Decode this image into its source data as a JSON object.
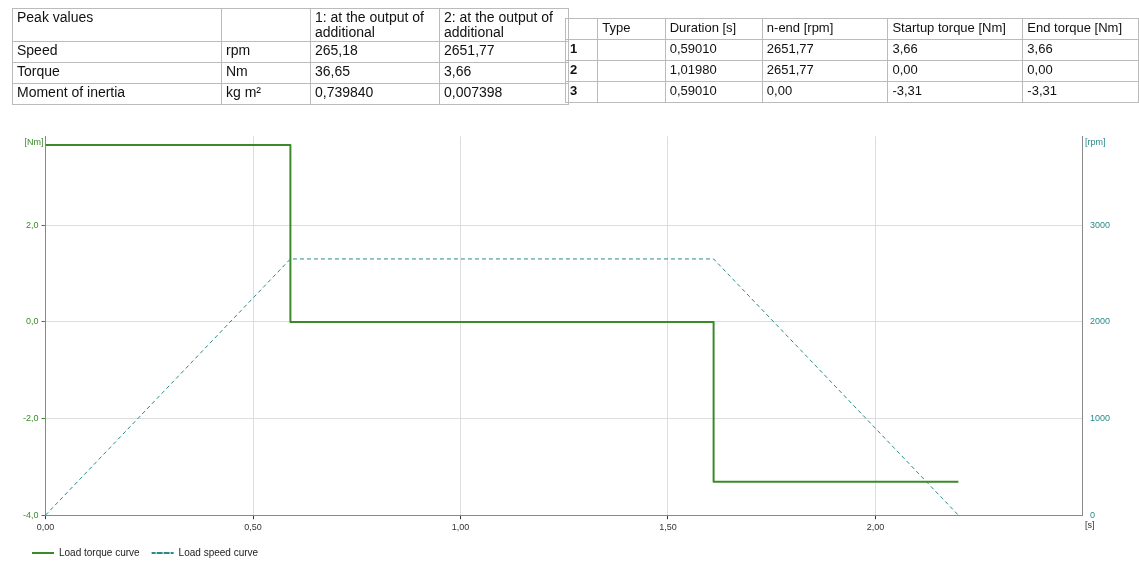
{
  "chart_data": [
    {
      "type": "other",
      "annotations": [
        "Peak values",
        "1: at the output of additional",
        "2: at the output of additional",
        "Speed",
        "rpm",
        "265,18",
        "2651,77",
        "Torque",
        "Nm",
        "36,65",
        "3,66",
        "Moment of inertia",
        "kg m²",
        "0,739840",
        "0,007398"
      ]
    },
    {
      "type": "other",
      "annotations": [
        "Type",
        "Duration [s]",
        "n-end [rpm]",
        "Startup torque [Nm]",
        "End torque [Nm]",
        "1",
        "0,59010",
        "2651,77",
        "3,66",
        "3,66",
        "2",
        "1,01980",
        "2651,77",
        "0,00",
        "0,00",
        "3",
        "0,59010",
        "0,00",
        "-3,31",
        "-3,31"
      ]
    },
    {
      "type": "line",
      "xlabel": "[s]",
      "ylabel": "[Nm]",
      "y2label": "[rpm]",
      "xlim": [
        0,
        2.5
      ],
      "xticks": [
        {
          "value": 0,
          "label": "0,00"
        },
        {
          "value": 0.5,
          "label": "0,50"
        },
        {
          "value": 1,
          "label": "1,00"
        },
        {
          "value": 1.5,
          "label": "1,50"
        },
        {
          "value": 2,
          "label": "2,00"
        }
      ],
      "ylim": [
        -4,
        3.84
      ],
      "yticks": [
        {
          "value": -4,
          "label": "-4,0"
        },
        {
          "value": -2,
          "label": "-2,0"
        },
        {
          "value": 0,
          "label": "0,0"
        },
        {
          "value": 2,
          "label": "2,0"
        }
      ],
      "y2lim": [
        0,
        3920
      ],
      "y2ticks": [
        0,
        1000,
        2000,
        3000
      ],
      "series": [
        {
          "name": "Load torque curve",
          "color": "#3a8a2a",
          "line_style": "solid",
          "x": [
            0,
            0.5901,
            0.5901,
            1.6099,
            1.6099,
            2.1998
          ],
          "values": [
            3.66,
            3.66,
            0,
            0,
            -3.31,
            -3.31
          ]
        },
        {
          "name": "Load speed curve",
          "color": "#2a8a8a",
          "line_style": "dashed",
          "axis": "y2",
          "x": [
            0,
            0.5901,
            1.6099,
            2.1998
          ],
          "values": [
            0,
            2651.77,
            2651.77,
            0
          ]
        }
      ],
      "grid": true,
      "legend": "bottom",
      "marker": "none"
    }
  ]
}
